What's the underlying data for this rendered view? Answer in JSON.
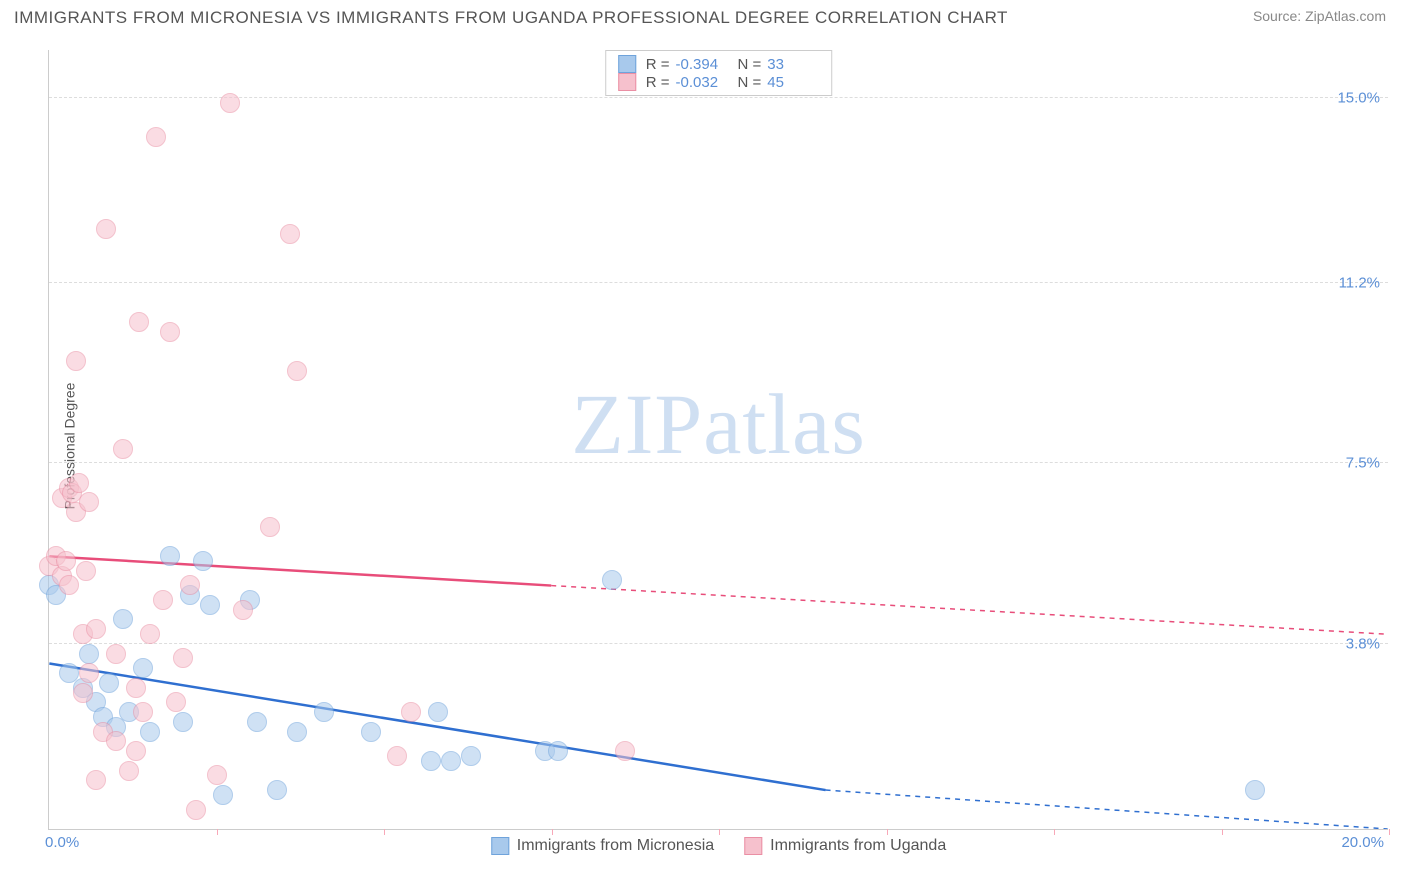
{
  "header": {
    "title": "IMMIGRANTS FROM MICRONESIA VS IMMIGRANTS FROM UGANDA PROFESSIONAL DEGREE CORRELATION CHART",
    "source": "Source: ZipAtlas.com"
  },
  "chart": {
    "type": "scatter",
    "ylabel": "Professional Degree",
    "xmin": 0.0,
    "xmax": 20.0,
    "ymin": 0.0,
    "ymax": 16.0,
    "x_origin_label": "0.0%",
    "x_max_label": "20.0%",
    "y_ticks": [
      {
        "v": 3.8,
        "label": "3.8%"
      },
      {
        "v": 7.5,
        "label": "7.5%"
      },
      {
        "v": 11.2,
        "label": "11.2%"
      },
      {
        "v": 15.0,
        "label": "15.0%"
      }
    ],
    "x_tick_positions": [
      2.5,
      5.0,
      7.5,
      10.0,
      12.5,
      15.0,
      17.5,
      20.0
    ],
    "watermark": "ZIPatlas",
    "background_color": "#ffffff",
    "grid_color": "#dddddd",
    "axis_color": "#cccccc",
    "tick_label_color": "#5b8fd6",
    "marker_radius": 10,
    "marker_opacity": 0.55,
    "series": {
      "micronesia": {
        "label": "Immigrants from Micronesia",
        "fill": "#a8c9ec",
        "stroke": "#6fa3db",
        "trend_color": "#2f6fd0",
        "R": "-0.394",
        "N": "33",
        "trend": {
          "x1": 0.0,
          "y1": 3.4,
          "x2_solid": 11.6,
          "y2_solid": 0.8,
          "x2": 20.0,
          "y2": -1.0
        },
        "points": [
          [
            0.0,
            5.0
          ],
          [
            0.1,
            4.8
          ],
          [
            0.3,
            3.2
          ],
          [
            0.5,
            2.9
          ],
          [
            0.6,
            3.6
          ],
          [
            0.7,
            2.6
          ],
          [
            0.8,
            2.3
          ],
          [
            0.9,
            3.0
          ],
          [
            1.0,
            2.1
          ],
          [
            1.1,
            4.3
          ],
          [
            1.2,
            2.4
          ],
          [
            1.4,
            3.3
          ],
          [
            1.5,
            2.0
          ],
          [
            1.8,
            5.6
          ],
          [
            2.0,
            2.2
          ],
          [
            2.1,
            4.8
          ],
          [
            2.3,
            5.5
          ],
          [
            2.4,
            4.6
          ],
          [
            2.6,
            0.7
          ],
          [
            3.0,
            4.7
          ],
          [
            3.1,
            2.2
          ],
          [
            3.4,
            0.8
          ],
          [
            3.7,
            2.0
          ],
          [
            4.1,
            2.4
          ],
          [
            4.8,
            2.0
          ],
          [
            5.7,
            1.4
          ],
          [
            5.8,
            2.4
          ],
          [
            6.0,
            1.4
          ],
          [
            6.3,
            1.5
          ],
          [
            7.4,
            1.6
          ],
          [
            7.6,
            1.6
          ],
          [
            8.4,
            5.1
          ],
          [
            18.0,
            0.8
          ]
        ]
      },
      "uganda": {
        "label": "Immigrants from Uganda",
        "fill": "#f6c1cd",
        "stroke": "#ea8fa4",
        "trend_color": "#e84d7a",
        "R": "-0.032",
        "N": "45",
        "trend": {
          "x1": 0.0,
          "y1": 5.6,
          "x2_solid": 7.5,
          "y2_solid": 5.0,
          "x2": 20.0,
          "y2": 4.0
        },
        "points": [
          [
            0.0,
            5.4
          ],
          [
            0.1,
            5.6
          ],
          [
            0.2,
            5.2
          ],
          [
            0.2,
            6.8
          ],
          [
            0.25,
            5.5
          ],
          [
            0.3,
            7.0
          ],
          [
            0.3,
            5.0
          ],
          [
            0.35,
            6.9
          ],
          [
            0.4,
            9.6
          ],
          [
            0.4,
            6.5
          ],
          [
            0.45,
            7.1
          ],
          [
            0.5,
            4.0
          ],
          [
            0.5,
            2.8
          ],
          [
            0.55,
            5.3
          ],
          [
            0.6,
            6.7
          ],
          [
            0.6,
            3.2
          ],
          [
            0.7,
            1.0
          ],
          [
            0.7,
            4.1
          ],
          [
            0.8,
            2.0
          ],
          [
            0.85,
            12.3
          ],
          [
            1.0,
            3.6
          ],
          [
            1.0,
            1.8
          ],
          [
            1.1,
            7.8
          ],
          [
            1.2,
            1.2
          ],
          [
            1.3,
            2.9
          ],
          [
            1.3,
            1.6
          ],
          [
            1.35,
            10.4
          ],
          [
            1.4,
            2.4
          ],
          [
            1.5,
            4.0
          ],
          [
            1.6,
            14.2
          ],
          [
            1.7,
            4.7
          ],
          [
            1.8,
            10.2
          ],
          [
            1.9,
            2.6
          ],
          [
            2.0,
            3.5
          ],
          [
            2.1,
            5.0
          ],
          [
            2.2,
            0.4
          ],
          [
            2.5,
            1.1
          ],
          [
            2.7,
            14.9
          ],
          [
            2.9,
            4.5
          ],
          [
            3.3,
            6.2
          ],
          [
            3.6,
            12.2
          ],
          [
            3.7,
            9.4
          ],
          [
            5.2,
            1.5
          ],
          [
            5.4,
            2.4
          ],
          [
            8.6,
            1.6
          ]
        ]
      }
    }
  }
}
